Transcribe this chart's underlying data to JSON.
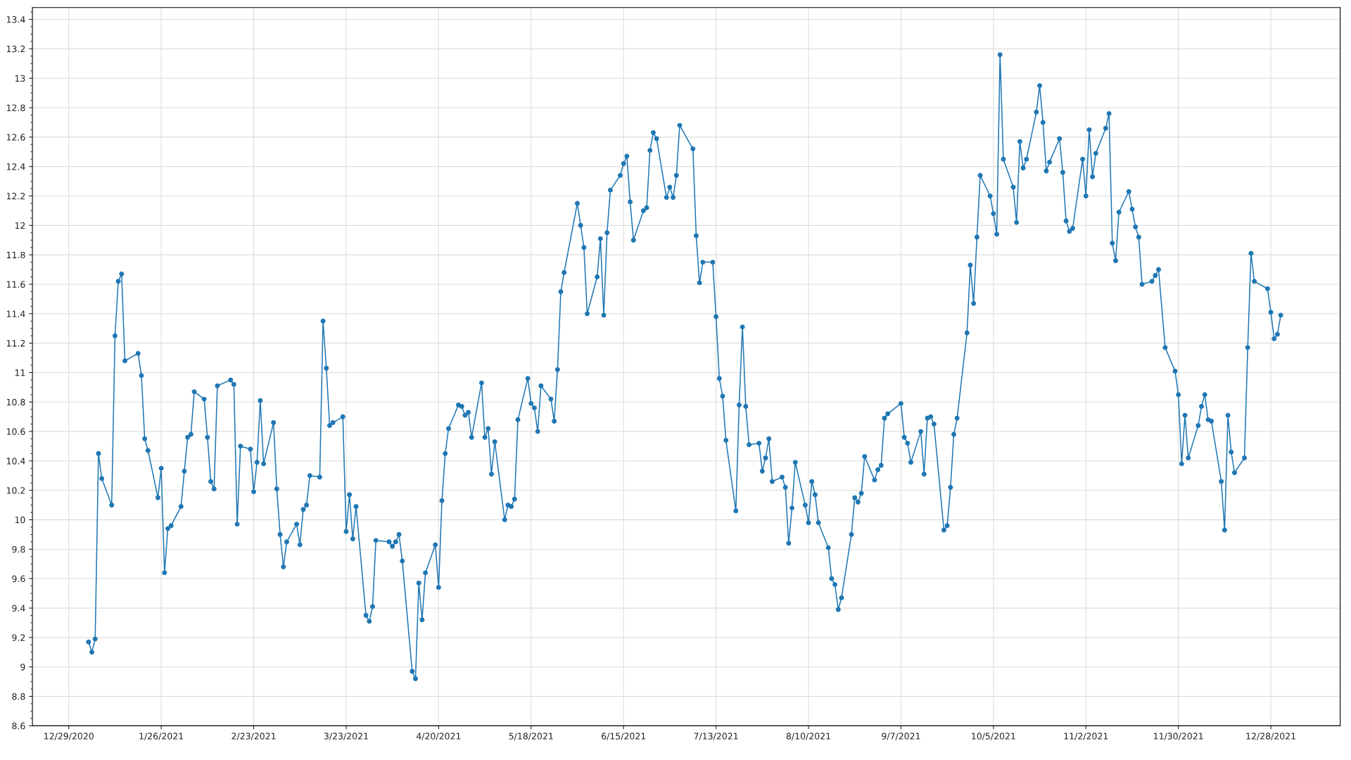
{
  "chart_data": {
    "type": "line",
    "xlim": [
      "2020-12-18",
      "2022-01-18"
    ],
    "ylim": [
      8.6,
      13.48
    ],
    "yticks": [
      8.6,
      8.8,
      9,
      9.2,
      9.4,
      9.6,
      9.8,
      10,
      10.2,
      10.4,
      10.6,
      10.8,
      11,
      11.2,
      11.4,
      11.6,
      11.8,
      12,
      12.2,
      12.4,
      12.6,
      12.8,
      13,
      13.2,
      13.4
    ],
    "xticks": [
      {
        "value": "2020-12-29",
        "label": "12/29/2020"
      },
      {
        "value": "2021-01-26",
        "label": "1/26/2021"
      },
      {
        "value": "2021-02-23",
        "label": "2/23/2021"
      },
      {
        "value": "2021-03-23",
        "label": "3/23/2021"
      },
      {
        "value": "2021-04-20",
        "label": "4/20/2021"
      },
      {
        "value": "2021-05-18",
        "label": "5/18/2021"
      },
      {
        "value": "2021-06-15",
        "label": "6/15/2021"
      },
      {
        "value": "2021-07-13",
        "label": "7/13/2021"
      },
      {
        "value": "2021-08-10",
        "label": "8/10/2021"
      },
      {
        "value": "2021-09-07",
        "label": "9/7/2021"
      },
      {
        "value": "2021-10-05",
        "label": "10/5/2021"
      },
      {
        "value": "2021-11-02",
        "label": "11/2/2021"
      },
      {
        "value": "2021-11-30",
        "label": "11/30/2021"
      },
      {
        "value": "2021-12-28",
        "label": "12/28/2021"
      }
    ],
    "grid": true,
    "marker": "circle",
    "line_style": "solid",
    "series": [
      {
        "color": "#1f77b4",
        "x": [
          "2021-01-04",
          "2021-01-05",
          "2021-01-06",
          "2021-01-07",
          "2021-01-08",
          "2021-01-11",
          "2021-01-12",
          "2021-01-13",
          "2021-01-14",
          "2021-01-15",
          "2021-01-19",
          "2021-01-20",
          "2021-01-21",
          "2021-01-22",
          "2021-01-25",
          "2021-01-26",
          "2021-01-27",
          "2021-01-28",
          "2021-01-29",
          "2021-02-01",
          "2021-02-02",
          "2021-02-03",
          "2021-02-04",
          "2021-02-05",
          "2021-02-08",
          "2021-02-09",
          "2021-02-10",
          "2021-02-11",
          "2021-02-12",
          "2021-02-16",
          "2021-02-17",
          "2021-02-18",
          "2021-02-19",
          "2021-02-22",
          "2021-02-23",
          "2021-02-24",
          "2021-02-25",
          "2021-02-26",
          "2021-03-01",
          "2021-03-02",
          "2021-03-03",
          "2021-03-04",
          "2021-03-05",
          "2021-03-08",
          "2021-03-09",
          "2021-03-10",
          "2021-03-11",
          "2021-03-12",
          "2021-03-15",
          "2021-03-16",
          "2021-03-17",
          "2021-03-18",
          "2021-03-19",
          "2021-03-22",
          "2021-03-23",
          "2021-03-24",
          "2021-03-25",
          "2021-03-26",
          "2021-03-29",
          "2021-03-30",
          "2021-03-31",
          "2021-04-01",
          "2021-04-05",
          "2021-04-06",
          "2021-04-07",
          "2021-04-08",
          "2021-04-09",
          "2021-04-12",
          "2021-04-13",
          "2021-04-14",
          "2021-04-15",
          "2021-04-16",
          "2021-04-19",
          "2021-04-20",
          "2021-04-21",
          "2021-04-22",
          "2021-04-23",
          "2021-04-26",
          "2021-04-27",
          "2021-04-28",
          "2021-04-29",
          "2021-04-30",
          "2021-05-03",
          "2021-05-04",
          "2021-05-05",
          "2021-05-06",
          "2021-05-07",
          "2021-05-10",
          "2021-05-11",
          "2021-05-12",
          "2021-05-13",
          "2021-05-14",
          "2021-05-17",
          "2021-05-18",
          "2021-05-19",
          "2021-05-20",
          "2021-05-21",
          "2021-05-24",
          "2021-05-25",
          "2021-05-26",
          "2021-05-27",
          "2021-05-28",
          "2021-06-01",
          "2021-06-02",
          "2021-06-03",
          "2021-06-04",
          "2021-06-07",
          "2021-06-08",
          "2021-06-09",
          "2021-06-10",
          "2021-06-11",
          "2021-06-14",
          "2021-06-15",
          "2021-06-16",
          "2021-06-17",
          "2021-06-18",
          "2021-06-21",
          "2021-06-22",
          "2021-06-23",
          "2021-06-24",
          "2021-06-25",
          "2021-06-28",
          "2021-06-29",
          "2021-06-30",
          "2021-07-01",
          "2021-07-02",
          "2021-07-06",
          "2021-07-07",
          "2021-07-08",
          "2021-07-09",
          "2021-07-12",
          "2021-07-13",
          "2021-07-14",
          "2021-07-15",
          "2021-07-16",
          "2021-07-19",
          "2021-07-20",
          "2021-07-21",
          "2021-07-22",
          "2021-07-23",
          "2021-07-26",
          "2021-07-27",
          "2021-07-28",
          "2021-07-29",
          "2021-07-30",
          "2021-08-02",
          "2021-08-03",
          "2021-08-04",
          "2021-08-05",
          "2021-08-06",
          "2021-08-09",
          "2021-08-10",
          "2021-08-11",
          "2021-08-12",
          "2021-08-13",
          "2021-08-16",
          "2021-08-17",
          "2021-08-18",
          "2021-08-19",
          "2021-08-20",
          "2021-08-23",
          "2021-08-24",
          "2021-08-25",
          "2021-08-26",
          "2021-08-27",
          "2021-08-30",
          "2021-08-31",
          "2021-09-01",
          "2021-09-02",
          "2021-09-03",
          "2021-09-07",
          "2021-09-08",
          "2021-09-09",
          "2021-09-10",
          "2021-09-13",
          "2021-09-14",
          "2021-09-15",
          "2021-09-16",
          "2021-09-17",
          "2021-09-20",
          "2021-09-21",
          "2021-09-22",
          "2021-09-23",
          "2021-09-24",
          "2021-09-27",
          "2021-09-28",
          "2021-09-29",
          "2021-09-30",
          "2021-10-01",
          "2021-10-04",
          "2021-10-05",
          "2021-10-06",
          "2021-10-07",
          "2021-10-08",
          "2021-10-11",
          "2021-10-12",
          "2021-10-13",
          "2021-10-14",
          "2021-10-15",
          "2021-10-18",
          "2021-10-19",
          "2021-10-20",
          "2021-10-21",
          "2021-10-22",
          "2021-10-25",
          "2021-10-26",
          "2021-10-27",
          "2021-10-28",
          "2021-10-29",
          "2021-11-01",
          "2021-11-02",
          "2021-11-03",
          "2021-11-04",
          "2021-11-05",
          "2021-11-08",
          "2021-11-09",
          "2021-11-10",
          "2021-11-11",
          "2021-11-12",
          "2021-11-15",
          "2021-11-16",
          "2021-11-17",
          "2021-11-18",
          "2021-11-19",
          "2021-11-22",
          "2021-11-23",
          "2021-11-24",
          "2021-11-26",
          "2021-11-29",
          "2021-11-30",
          "2021-12-01",
          "2021-12-02",
          "2021-12-03",
          "2021-12-06",
          "2021-12-07",
          "2021-12-08",
          "2021-12-09",
          "2021-12-10",
          "2021-12-13",
          "2021-12-14",
          "2021-12-15",
          "2021-12-16",
          "2021-12-17",
          "2021-12-20",
          "2021-12-21",
          "2021-12-22",
          "2021-12-23",
          "2021-12-27",
          "2021-12-28",
          "2021-12-29",
          "2021-12-30",
          "2021-12-31"
        ],
        "values": [
          9.17,
          9.1,
          9.19,
          10.45,
          10.28,
          10.1,
          11.25,
          11.62,
          11.67,
          11.08,
          11.13,
          10.98,
          10.55,
          10.47,
          10.15,
          10.35,
          9.64,
          9.94,
          9.96,
          10.09,
          10.33,
          10.56,
          10.58,
          10.87,
          10.82,
          10.56,
          10.26,
          10.21,
          10.91,
          10.95,
          10.92,
          9.97,
          10.5,
          10.48,
          10.19,
          10.39,
          10.81,
          10.38,
          10.66,
          10.21,
          9.9,
          9.68,
          9.85,
          9.97,
          9.83,
          10.07,
          10.1,
          10.3,
          10.29,
          11.35,
          11.03,
          10.64,
          10.66,
          10.7,
          9.92,
          10.17,
          9.87,
          10.09,
          9.35,
          9.31,
          9.41,
          9.86,
          9.85,
          9.82,
          9.85,
          9.9,
          9.72,
          8.97,
          8.92,
          9.57,
          9.32,
          9.64,
          9.83,
          9.54,
          10.13,
          10.45,
          10.62,
          10.78,
          10.77,
          10.71,
          10.73,
          10.56,
          10.93,
          10.56,
          10.62,
          10.31,
          10.53,
          10.0,
          10.1,
          10.09,
          10.14,
          10.68,
          10.96,
          10.79,
          10.76,
          10.6,
          10.91,
          10.82,
          10.67,
          11.02,
          11.55,
          11.68,
          12.15,
          12.0,
          11.85,
          11.4,
          11.65,
          11.91,
          11.39,
          11.95,
          12.24,
          12.34,
          12.42,
          12.47,
          12.16,
          11.9,
          12.1,
          12.12,
          12.51,
          12.63,
          12.59,
          12.19,
          12.26,
          12.19,
          12.34,
          12.68,
          12.52,
          11.93,
          11.61,
          11.75,
          11.75,
          11.38,
          10.96,
          10.84,
          10.54,
          10.06,
          10.78,
          11.31,
          10.77,
          10.51,
          10.52,
          10.33,
          10.42,
          10.55,
          10.26,
          10.29,
          10.22,
          9.84,
          10.08,
          10.39,
          10.1,
          9.98,
          10.26,
          10.17,
          9.98,
          9.81,
          9.6,
          9.56,
          9.39,
          9.47,
          9.9,
          10.15,
          10.12,
          10.18,
          10.43,
          10.27,
          10.34,
          10.37,
          10.69,
          10.72,
          10.79,
          10.56,
          10.52,
          10.39,
          10.6,
          10.31,
          10.69,
          10.7,
          10.65,
          9.93,
          9.96,
          10.22,
          10.58,
          10.69,
          11.27,
          11.73,
          11.47,
          11.92,
          12.34,
          12.2,
          12.08,
          11.94,
          13.16,
          12.45,
          12.26,
          12.02,
          12.57,
          12.39,
          12.45,
          12.77,
          12.95,
          12.7,
          12.37,
          12.43,
          12.59,
          12.36,
          12.03,
          11.96,
          11.98,
          12.45,
          12.2,
          12.65,
          12.33,
          12.49,
          12.66,
          12.76,
          11.88,
          11.76,
          12.09,
          12.23,
          12.11,
          11.99,
          11.92,
          11.6,
          11.62,
          11.66,
          11.7,
          11.17,
          11.01,
          10.85,
          10.38,
          10.71,
          10.42,
          10.64,
          10.77,
          10.85,
          10.68,
          10.67,
          10.26,
          9.93,
          10.71,
          10.46,
          10.32,
          10.42,
          11.17,
          11.81,
          11.62,
          11.57,
          11.41,
          11.23,
          11.26,
          11.39
        ]
      }
    ]
  }
}
